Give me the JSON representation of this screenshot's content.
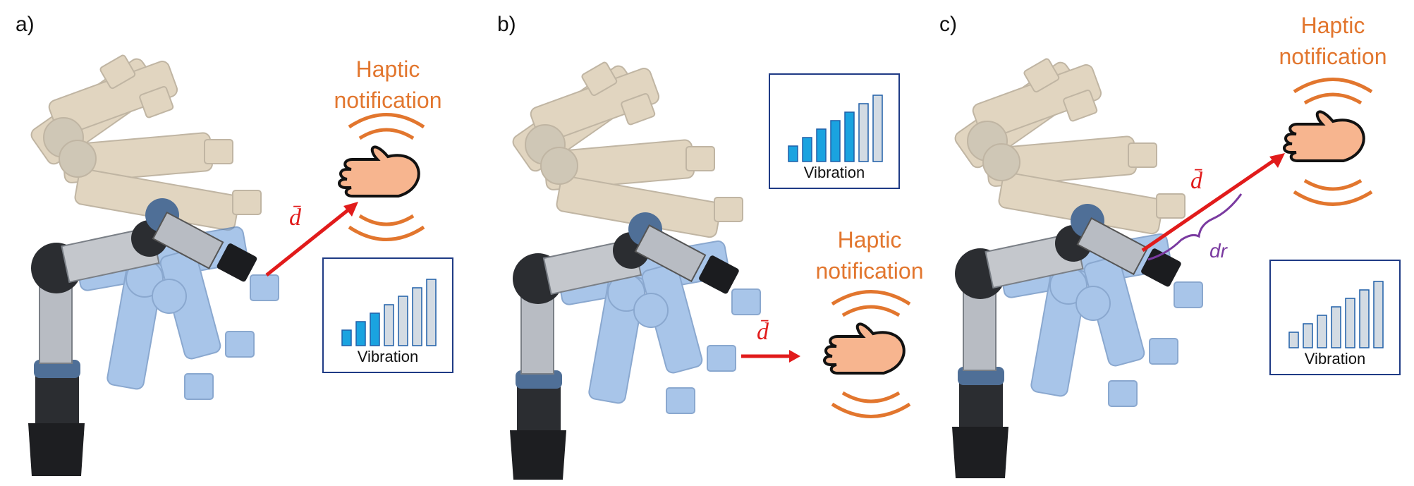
{
  "panels": [
    {
      "label": "a)",
      "haptic_line1": "Haptic",
      "haptic_line2": "notification",
      "vibration_label": "Vibration",
      "vibration_level": 3,
      "vibration_bars": 7,
      "distance_label": "d̄"
    },
    {
      "label": "b)",
      "haptic_line1": "Haptic",
      "haptic_line2": "notification",
      "vibration_label": "Vibration",
      "vibration_level": 5,
      "vibration_bars": 7,
      "distance_label": "d̄"
    },
    {
      "label": "c)",
      "haptic_line1": "Haptic",
      "haptic_line2": "notification",
      "vibration_label": "Vibration",
      "vibration_level": 0,
      "vibration_bars": 7,
      "distance_label": "d̄",
      "range_label": "dr"
    }
  ],
  "colors": {
    "haptic_text": "#e2762e",
    "arrow": "#e11b1b",
    "bar_active": "#1aa3e0",
    "bar_inactive": "#d3dbe3",
    "box_border": "#1f3b85",
    "range_brace": "#7a3aa0",
    "hand_fill": "#f7b58f",
    "robot_ghost_tan": "#c9b48d",
    "robot_ghost_blue": "#6f9fdc"
  }
}
